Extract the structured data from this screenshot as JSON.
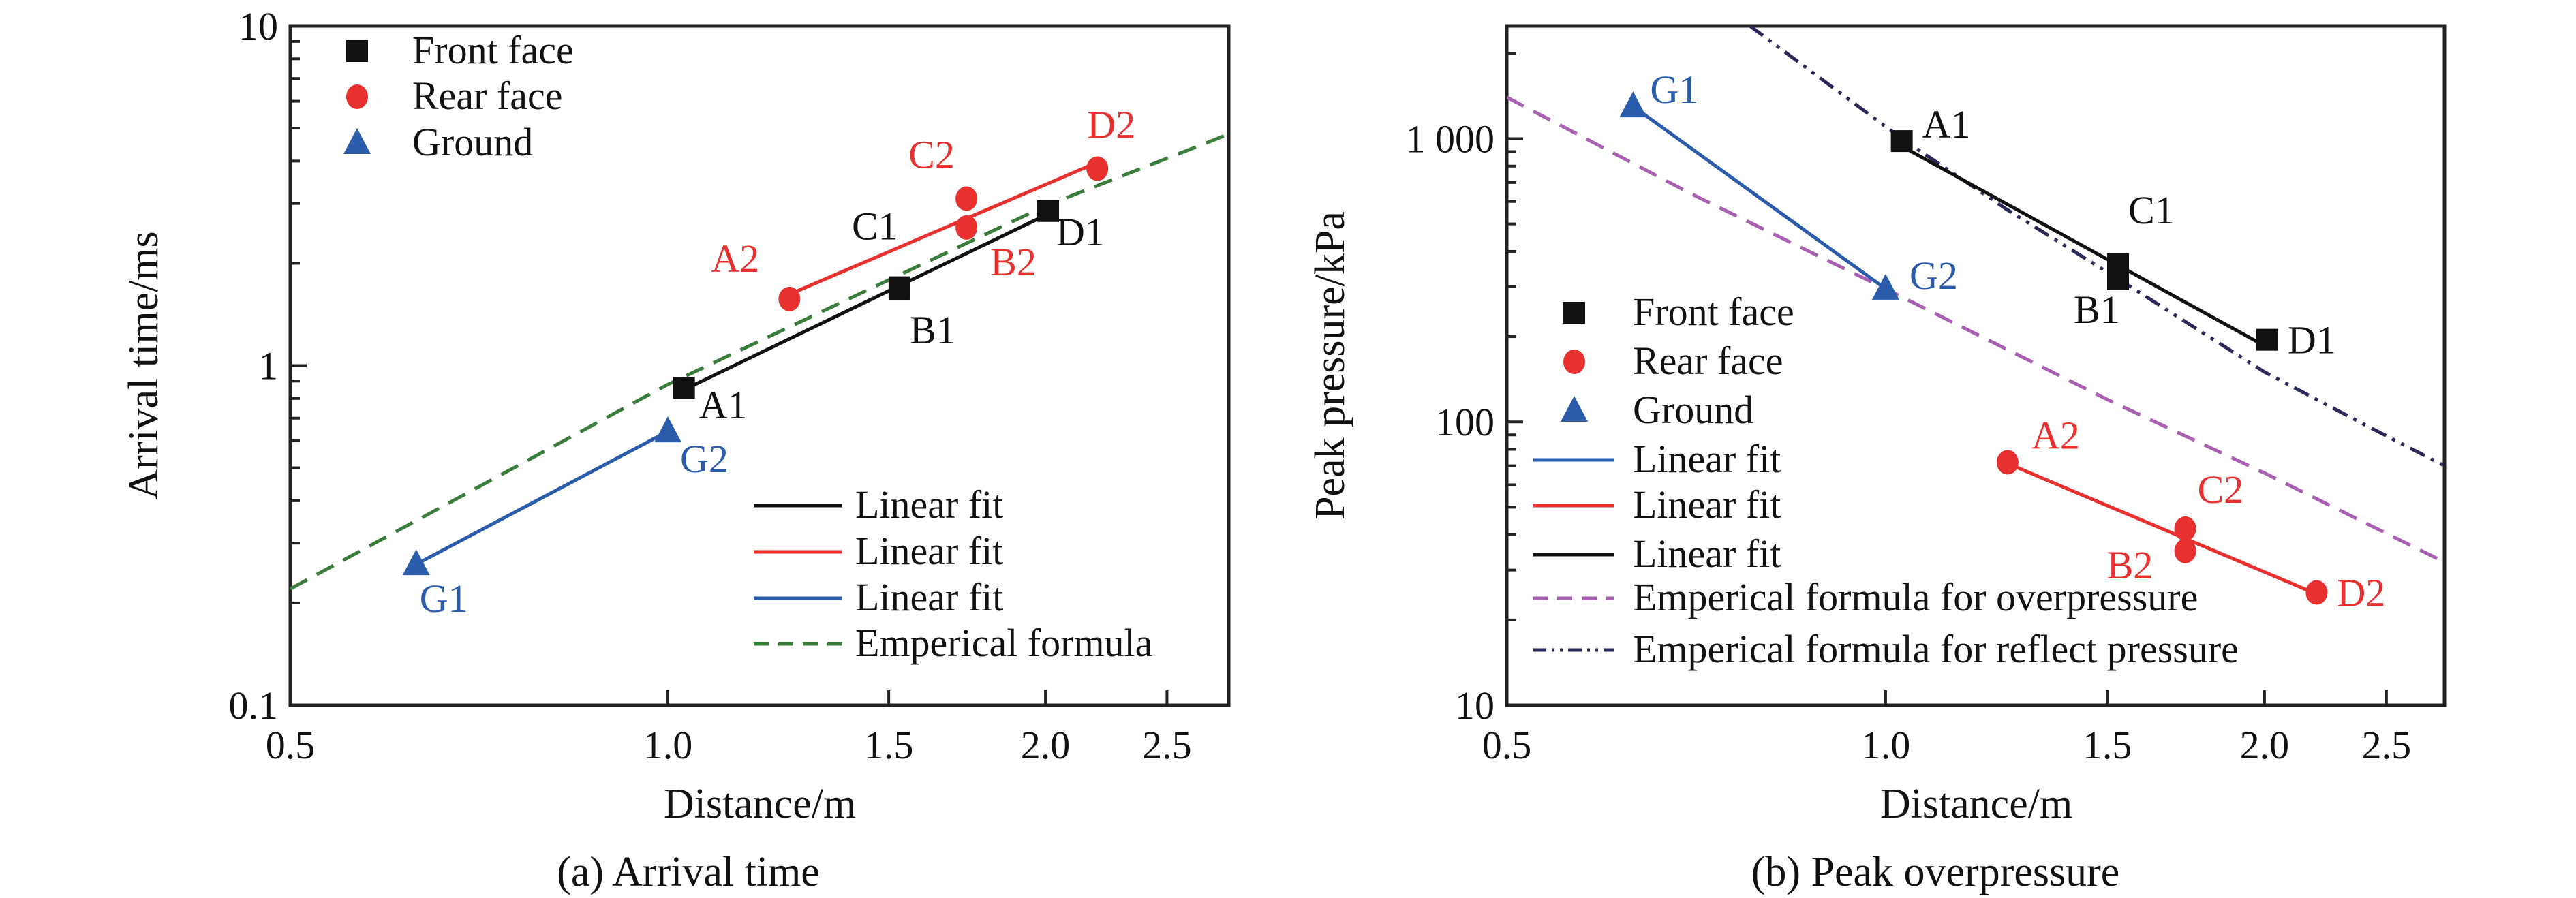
{
  "colors": {
    "front": "#111111",
    "rear": "#e8302f",
    "ground": "#2b5bab",
    "empirical_a": "#3a7d3a",
    "overpressure": "#a860b0",
    "reflect": "#2a2a5a"
  },
  "chart_data": [
    {
      "type": "scatter",
      "caption": "(a) Arrival time",
      "xlabel": "Distance/m",
      "ylabel": "Arrival time/ms",
      "xscale": "log",
      "yscale": "log",
      "xlim": [
        0.5,
        2.8
      ],
      "ylim": [
        0.1,
        10
      ],
      "xticks": [
        0.5,
        1.0,
        1.5,
        2.0,
        2.5
      ],
      "xtick_labels": [
        "0.5",
        "1.0",
        "1.5",
        "2.0",
        "2.5"
      ],
      "yticks": [
        0.1,
        1,
        10
      ],
      "ytick_labels": [
        "0.1",
        "1",
        "10"
      ],
      "grid": false,
      "series": [
        {
          "name": "Front face",
          "marker": "square",
          "color_key": "front",
          "points": [
            {
              "label": "A1",
              "x": 1.03,
              "y": 0.86
            },
            {
              "label": "B1",
              "x": 1.53,
              "y": 1.68
            },
            {
              "label": "C1",
              "x": 1.53,
              "y": 1.7
            },
            {
              "label": "D1",
              "x": 2.01,
              "y": 2.85
            }
          ]
        },
        {
          "name": "Rear face",
          "marker": "circle",
          "color_key": "rear",
          "points": [
            {
              "label": "A2",
              "x": 1.25,
              "y": 1.57
            },
            {
              "label": "B2",
              "x": 1.73,
              "y": 2.55
            },
            {
              "label": "C2",
              "x": 1.73,
              "y": 3.1
            },
            {
              "label": "D2",
              "x": 2.2,
              "y": 3.8
            }
          ]
        },
        {
          "name": "Ground",
          "marker": "triangle",
          "color_key": "ground",
          "points": [
            {
              "label": "G1",
              "x": 0.63,
              "y": 0.26
            },
            {
              "label": "G2",
              "x": 1.0,
              "y": 0.64
            }
          ]
        }
      ],
      "fits": [
        {
          "name": "Linear fit",
          "of": 0,
          "color_key": "front"
        },
        {
          "name": "Linear fit",
          "of": 1,
          "color_key": "rear"
        },
        {
          "name": "Linear fit",
          "of": 2,
          "color_key": "ground"
        }
      ],
      "curves": [
        {
          "name": "Emperical formula",
          "style": "dashed",
          "color_key": "empirical_a",
          "points": [
            [
              0.5,
              0.22
            ],
            [
              1.0,
              0.88
            ],
            [
              2.0,
              2.95
            ],
            [
              2.8,
              4.8
            ]
          ]
        }
      ]
    },
    {
      "type": "scatter",
      "caption": "(b) Peak overpressure",
      "xlabel": "Distance/m",
      "ylabel": "Peak pressure/kPa",
      "xscale": "log",
      "yscale": "log",
      "xlim": [
        0.5,
        2.78
      ],
      "ylim": [
        10,
        2500
      ],
      "xticks": [
        0.5,
        1.0,
        1.5,
        2.0,
        2.5
      ],
      "xtick_labels": [
        "0.5",
        "1.0",
        "1.5",
        "2.0",
        "2.5"
      ],
      "yticks": [
        10,
        100,
        1000
      ],
      "ytick_labels": [
        "10",
        "100",
        "1 000"
      ],
      "grid": false,
      "series": [
        {
          "name": "Front face",
          "marker": "square",
          "color_key": "front",
          "points": [
            {
              "label": "A1",
              "x": 1.03,
              "y": 980
            },
            {
              "label": "B1",
              "x": 1.53,
              "y": 320
            },
            {
              "label": "C1",
              "x": 1.53,
              "y": 360
            },
            {
              "label": "D1",
              "x": 2.01,
              "y": 195
            }
          ]
        },
        {
          "name": "Rear face",
          "marker": "circle",
          "color_key": "rear",
          "points": [
            {
              "label": "A2",
              "x": 1.25,
              "y": 72
            },
            {
              "label": "B2",
              "x": 1.73,
              "y": 35
            },
            {
              "label": "C2",
              "x": 1.73,
              "y": 42
            },
            {
              "label": "D2",
              "x": 2.2,
              "y": 25
            }
          ]
        },
        {
          "name": "Ground",
          "marker": "triangle",
          "color_key": "ground",
          "points": [
            {
              "label": "G1",
              "x": 0.63,
              "y": 1300
            },
            {
              "label": "G2",
              "x": 1.0,
              "y": 295
            }
          ]
        }
      ],
      "fits": [
        {
          "name": "Linear fit",
          "of": 2,
          "color_key": "ground"
        },
        {
          "name": "Linear fit",
          "of": 1,
          "color_key": "rear"
        },
        {
          "name": "Linear fit",
          "of": 0,
          "color_key": "front"
        }
      ],
      "curves": [
        {
          "name": "Emperical formula for overpressure",
          "style": "dashed",
          "color_key": "overpressure",
          "points": [
            [
              0.5,
              1400
            ],
            [
              0.7,
              640
            ],
            [
              1.0,
              295
            ],
            [
              1.5,
              120
            ],
            [
              2.0,
              66
            ],
            [
              2.78,
              32
            ]
          ]
        },
        {
          "name": "Emperical formula for reflect pressure",
          "style": "dashdot",
          "color_key": "reflect",
          "points": [
            [
              0.78,
              2500
            ],
            [
              1.03,
              1000
            ],
            [
              1.25,
              560
            ],
            [
              1.53,
              320
            ],
            [
              2.0,
              150
            ],
            [
              2.4,
              98
            ],
            [
              2.78,
              70
            ]
          ]
        }
      ]
    }
  ]
}
